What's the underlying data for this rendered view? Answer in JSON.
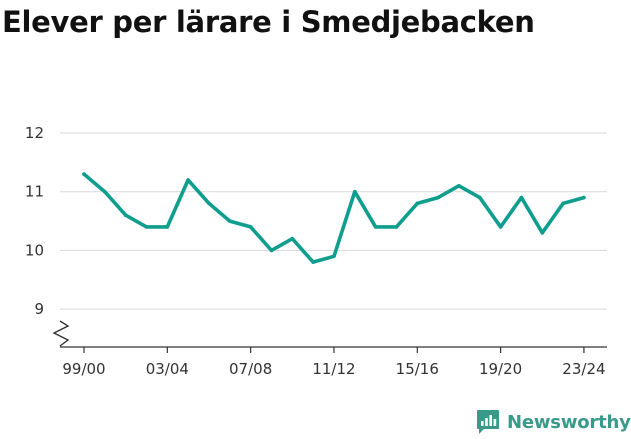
{
  "chart_data": {
    "type": "line",
    "title": "Elever per lärare i Smedjebacken",
    "xlabel": "",
    "ylabel": "",
    "ylim": [
      8.6,
      12
    ],
    "y_ticks": [
      9,
      10,
      11,
      12
    ],
    "axis_break": true,
    "grid": true,
    "x_tick_labels": [
      "99/00",
      "03/04",
      "07/08",
      "11/12",
      "15/16",
      "19/20",
      "23/24"
    ],
    "x_tick_index": [
      0,
      4,
      8,
      12,
      16,
      20,
      24
    ],
    "x": [
      "99/00",
      "00/01",
      "01/02",
      "02/03",
      "03/04",
      "04/05",
      "05/06",
      "06/07",
      "07/08",
      "08/09",
      "09/10",
      "10/11",
      "11/12",
      "12/13",
      "13/14",
      "14/15",
      "15/16",
      "16/17",
      "17/18",
      "18/19",
      "19/20",
      "20/21",
      "21/22",
      "22/23",
      "23/24"
    ],
    "series": [
      {
        "color": "#0f9e8e",
        "values": [
          11.3,
          11.0,
          10.6,
          10.4,
          10.4,
          11.2,
          10.8,
          10.5,
          10.4,
          10.0,
          10.2,
          9.8,
          9.9,
          11.0,
          10.4,
          10.4,
          10.8,
          10.9,
          11.1,
          10.9,
          10.4,
          10.9,
          10.3,
          10.8,
          10.9
        ]
      }
    ]
  },
  "brand": {
    "name": "Newsworthy",
    "icon": "newsworthy-logo-icon",
    "color": "#3a9a8a"
  }
}
